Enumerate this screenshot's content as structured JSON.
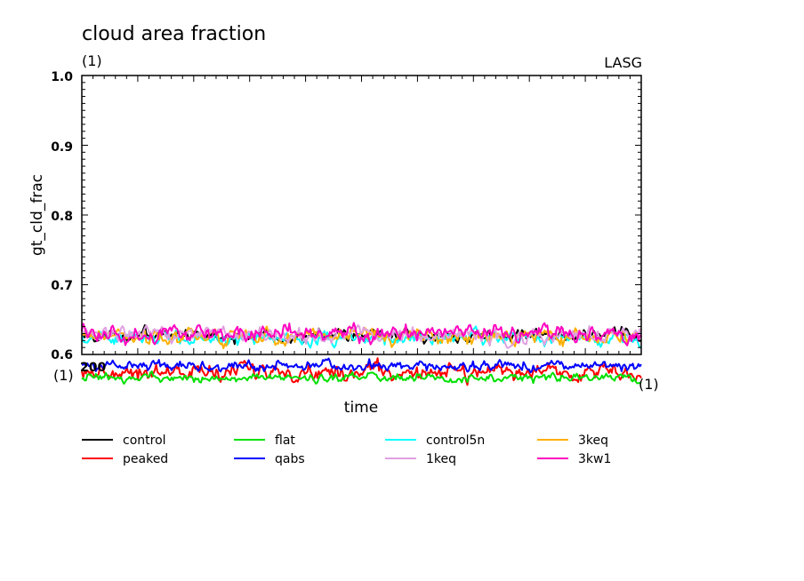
{
  "chart_data": {
    "type": "line",
    "title": "cloud area fraction",
    "subtitle_left": "(1)",
    "subtitle_right": "LASG",
    "xlabel": "time",
    "x_left_unit": "(1)",
    "x_right_unit": "(1)",
    "x_tick_label_first": "200",
    "ylabel": "gt_cld_frac",
    "ylim": [
      0.57,
      1.0
    ],
    "yticks": [
      "0.6",
      "0.7",
      "0.8",
      "0.9",
      "1.0"
    ],
    "x_samples": 400,
    "grid": false,
    "legend_position": "bottom",
    "series": [
      {
        "name": "control",
        "color": "#000000",
        "mean": 0.627,
        "amp": 0.012
      },
      {
        "name": "peaked",
        "color": "#ff0000",
        "mean": 0.575,
        "amp": 0.015
      },
      {
        "name": "control5n",
        "color": "#00ffff",
        "mean": 0.623,
        "amp": 0.012
      },
      {
        "name": "3keq",
        "color": "#ffb000",
        "mean": 0.626,
        "amp": 0.014
      },
      {
        "name": "flat",
        "color": "#00e000",
        "mean": 0.566,
        "amp": 0.008
      },
      {
        "name": "qabs",
        "color": "#0000ff",
        "mean": 0.583,
        "amp": 0.01
      },
      {
        "name": "1keq",
        "color": "#e0a0e0",
        "mean": 0.627,
        "amp": 0.014
      },
      {
        "name": "3kw1",
        "color": "#ff00c0",
        "mean": 0.63,
        "amp": 0.015
      }
    ],
    "legend": [
      {
        "name": "control",
        "color": "#000000"
      },
      {
        "name": "peaked",
        "color": "#ff0000"
      },
      {
        "name": "flat",
        "color": "#00e000"
      },
      {
        "name": "qabs",
        "color": "#0000ff"
      },
      {
        "name": "control5n",
        "color": "#00ffff"
      },
      {
        "name": "1keq",
        "color": "#e0a0e0"
      },
      {
        "name": "3keq",
        "color": "#ffb000"
      },
      {
        "name": "3kw1",
        "color": "#ff00c0"
      }
    ]
  }
}
